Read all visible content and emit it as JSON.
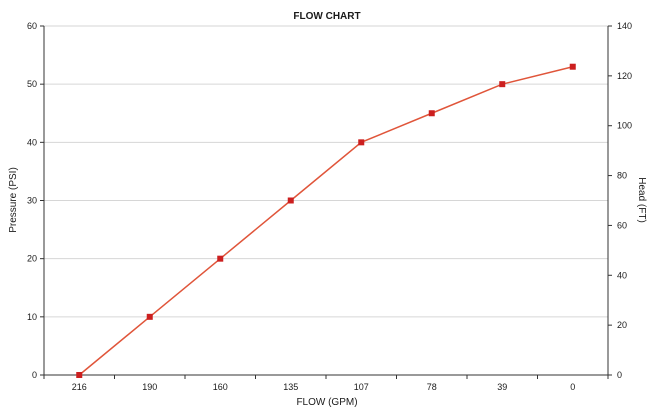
{
  "chart_data": {
    "type": "line",
    "title": "FLOW CHART",
    "xlabel": "FLOW (GPM)",
    "ylabel": "Pressure (PSI)",
    "y2label": "Head (FT)",
    "categories": [
      "216",
      "190",
      "160",
      "135",
      "107",
      "78",
      "39",
      "0"
    ],
    "series": [
      {
        "values": [
          0,
          10,
          20,
          30,
          40,
          45,
          50,
          53
        ]
      }
    ],
    "ylim": [
      0,
      60
    ],
    "yticks": [
      0,
      10,
      20,
      30,
      40,
      50,
      60
    ],
    "y2lim": [
      0,
      140
    ],
    "y2ticks": [
      0,
      20,
      40,
      60,
      80,
      100,
      120,
      140
    ],
    "grid": true,
    "legend": "none",
    "colors": {
      "line": "#e0553a",
      "marker": "#cc1f1f",
      "grid": "#d6d6d6",
      "axis": "#333333"
    }
  }
}
